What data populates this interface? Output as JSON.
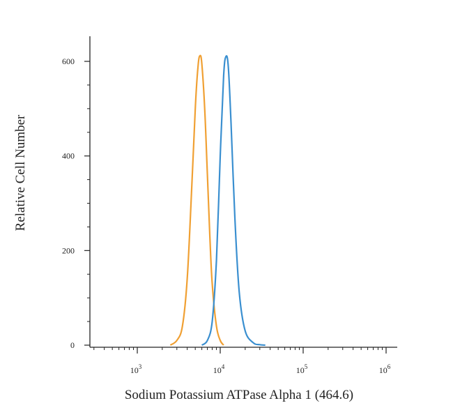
{
  "chart_data": {
    "type": "line",
    "title": "",
    "xlabel": "Sodium Potassium ATPase Alpha 1 (464.6)",
    "ylabel": "Relative Cell Number",
    "x_scale": "log",
    "xlim": [
      300,
      1000000
    ],
    "ylim": [
      0,
      650
    ],
    "x_ticks": [
      {
        "value": 1000,
        "base": "10",
        "exp": "3"
      },
      {
        "value": 10000,
        "base": "10",
        "exp": "4"
      },
      {
        "value": 100000,
        "base": "10",
        "exp": "5"
      },
      {
        "value": 1000000,
        "base": "10",
        "exp": "6"
      }
    ],
    "y_ticks": [
      0,
      200,
      400,
      600
    ],
    "legend": "none",
    "grid": false,
    "series": [
      {
        "color": "#f0a033",
        "x": [
          2500,
          3000,
          3500,
          4000,
          4500,
          5000,
          5400,
          5700,
          6000,
          6500,
          7000,
          7500,
          8000,
          9000,
          10000,
          11000
        ],
        "y": [
          0,
          10,
          40,
          140,
          320,
          500,
          590,
          612,
          595,
          500,
          360,
          230,
          130,
          40,
          10,
          0
        ]
      },
      {
        "color": "#3a8fd0",
        "x": [
          6000,
          7000,
          8000,
          9000,
          10000,
          11000,
          11700,
          12500,
          13500,
          15000,
          17000,
          20000,
          25000,
          30000,
          35000
        ],
        "y": [
          0,
          10,
          50,
          180,
          400,
          570,
          610,
          590,
          470,
          270,
          110,
          30,
          5,
          1,
          0
        ]
      }
    ]
  }
}
